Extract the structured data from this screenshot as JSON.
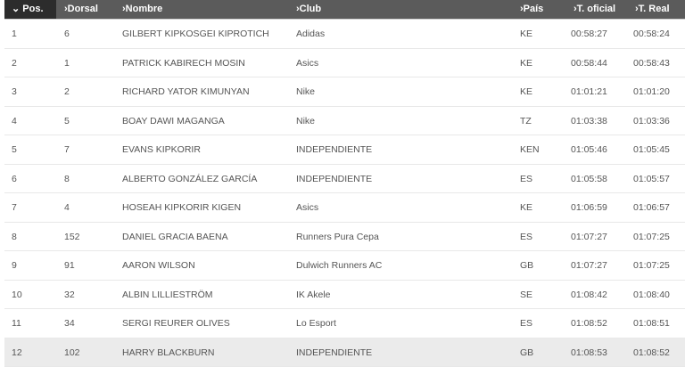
{
  "columns": [
    "⌄ Pos.",
    "›Dorsal",
    "›Nombre",
    "›Club",
    "›País",
    "›T. oficial",
    "›T. Real"
  ],
  "rows": [
    [
      "1",
      "6",
      "GILBERT KIPKOSGEI KIPROTICH",
      "Adidas",
      "KE",
      "00:58:27",
      "00:58:24"
    ],
    [
      "2",
      "1",
      "PATRICK KABIRECH MOSIN",
      "Asics",
      "KE",
      "00:58:44",
      "00:58:43"
    ],
    [
      "3",
      "2",
      "RICHARD YATOR KIMUNYAN",
      "Nike",
      "KE",
      "01:01:21",
      "01:01:20"
    ],
    [
      "4",
      "5",
      "BOAY DAWI MAGANGA",
      "Nike",
      "TZ",
      "01:03:38",
      "01:03:36"
    ],
    [
      "5",
      "7",
      "EVANS KIPKORIR",
      "INDEPENDIENTE",
      "KEN",
      "01:05:46",
      "01:05:45"
    ],
    [
      "6",
      "8",
      "ALBERTO GONZÁLEZ GARCÍA",
      "INDEPENDIENTE",
      "ES",
      "01:05:58",
      "01:05:57"
    ],
    [
      "7",
      "4",
      "HOSEAH KIPKORIR KIGEN",
      "Asics",
      "KE",
      "01:06:59",
      "01:06:57"
    ],
    [
      "8",
      "152",
      "DANIEL GRACIA BAENA",
      "Runners Pura Cepa",
      "ES",
      "01:07:27",
      "01:07:25"
    ],
    [
      "9",
      "91",
      "AARON WILSON",
      "Dulwich Runners AC",
      "GB",
      "01:07:27",
      "01:07:25"
    ],
    [
      "10",
      "32",
      "ALBIN LILLIESTRÖM",
      "IK Akele",
      "SE",
      "01:08:42",
      "01:08:40"
    ],
    [
      "11",
      "34",
      "SERGI REURER OLIVES",
      "Lo Esport",
      "ES",
      "01:08:52",
      "01:08:51"
    ],
    [
      "12",
      "102",
      "HARRY BLACKBURN",
      "INDEPENDIENTE",
      "GB",
      "01:08:53",
      "01:08:52"
    ]
  ],
  "highlighted_row": 12,
  "colors": {
    "header": "#5b5b5b",
    "sorted_header": "#2c2c2c",
    "highlight": "#ebebeb"
  }
}
